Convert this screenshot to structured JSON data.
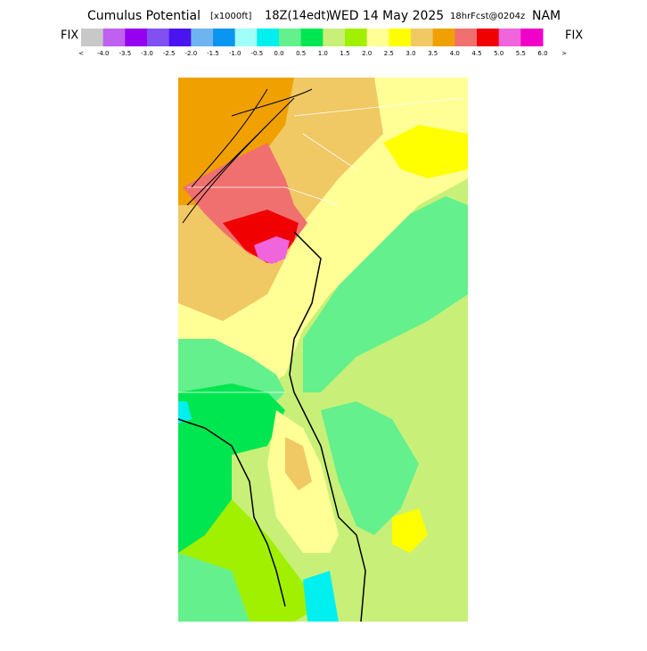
{
  "header": {
    "title": "Cumulus Potential",
    "units": "[x1000ft]",
    "time": "18Z(14edt)",
    "date": "WED 14 May 2025",
    "forecast": "18hrFcst@0204z",
    "model": "NAM"
  },
  "colorbar": {
    "left_label": "FIX",
    "right_label": "FIX",
    "colors": [
      "#c8c8c8",
      "#c060f0",
      "#9600f0",
      "#8050f0",
      "#4a14f0",
      "#6eb4f0",
      "#0a96f0",
      "#a0fff8",
      "#00f0f0",
      "#64f08c",
      "#00e650",
      "#c8f078",
      "#a0f000",
      "#ffff96",
      "#ffff00",
      "#f0c864",
      "#f0a000",
      "#f07070",
      "#f00000",
      "#f064dc",
      "#f000c8"
    ],
    "labels": [
      "<",
      "-4.0",
      "-3.5",
      "-3.0",
      "-2.5",
      "-2.0",
      "-1.5",
      "-1.0",
      "-0.5",
      "0.0",
      "0.5",
      "1.0",
      "1.5",
      "2.0",
      "2.5",
      "3.0",
      "3.5",
      "4.0",
      "4.5",
      "5.0",
      "5.5",
      "6.0",
      ">"
    ]
  }
}
